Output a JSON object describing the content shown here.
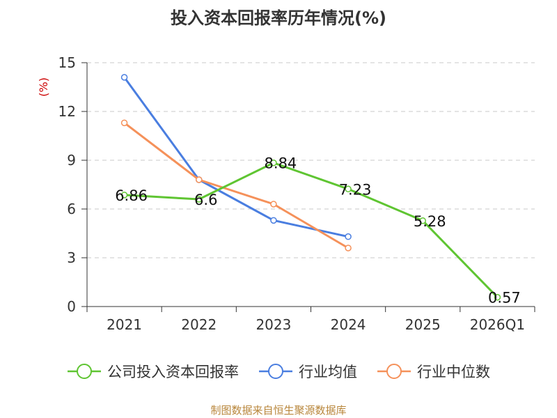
{
  "chart_data": {
    "type": "line",
    "title": "投入资本回报率历年情况(%)",
    "ylabel": "(%)",
    "xlabel": "",
    "categories": [
      "2021",
      "2022",
      "2023",
      "2024",
      "2025",
      "2026Q1"
    ],
    "ylim": [
      0,
      15
    ],
    "yticks": [
      0,
      3,
      6,
      9,
      12,
      15
    ],
    "grid": "horizontal-dashed",
    "legend_position": "bottom",
    "series": [
      {
        "name": "公司投入资本回报率",
        "color": "#5fc532",
        "values": [
          6.86,
          6.6,
          8.84,
          7.23,
          5.28,
          0.57
        ],
        "labels": [
          "6.86",
          "6.6",
          "8.84",
          "7.23",
          "5.28",
          "0.57"
        ]
      },
      {
        "name": "行业均值",
        "color": "#4a7ee0",
        "values": [
          14.1,
          7.8,
          5.3,
          4.3,
          null,
          null
        ]
      },
      {
        "name": "行业中位数",
        "color": "#f5915a",
        "values": [
          11.3,
          7.8,
          6.3,
          3.6,
          null,
          null
        ]
      }
    ]
  },
  "source_note": "制图数据来自恒生聚源数据库"
}
